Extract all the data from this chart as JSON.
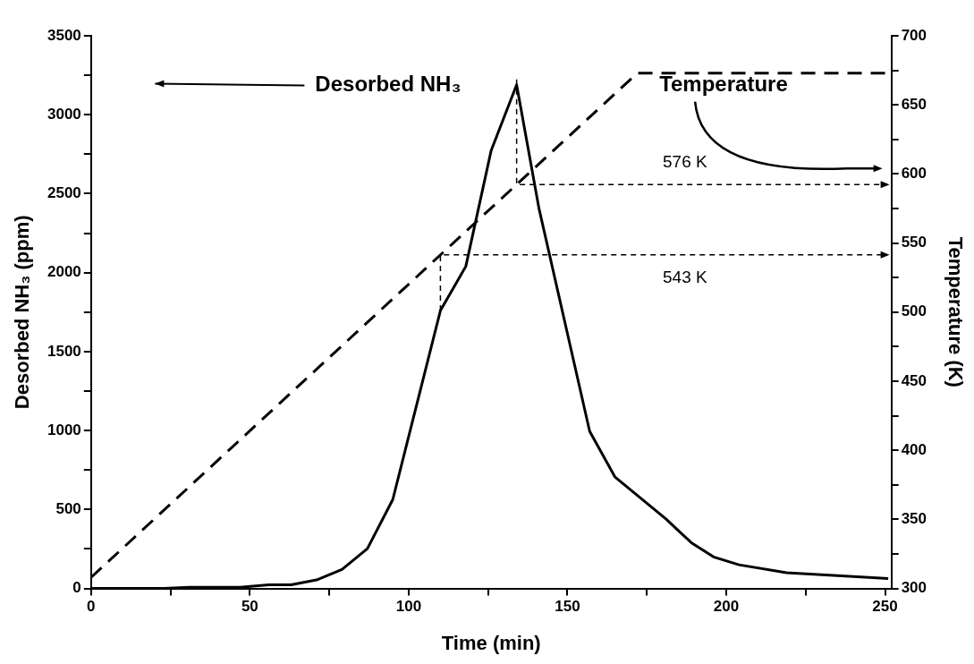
{
  "chart_data": {
    "type": "line",
    "xlabel": "Time (min)",
    "ylabel": "Desorbed NH₃ (ppm)",
    "y2label": "Temperature (K)",
    "xlim": [
      0,
      252
    ],
    "xticks": [
      0,
      {
        "value": 25,
        "label": null
      },
      50,
      {
        "value": 75,
        "label": null
      },
      100,
      {
        "value": 125,
        "label": null
      },
      150,
      {
        "value": 175,
        "label": null
      },
      200,
      {
        "value": 225,
        "label": null
      },
      250
    ],
    "ylim": [
      0,
      3500
    ],
    "yticks": [
      0,
      {
        "value": 250,
        "label": null
      },
      500,
      {
        "value": 750,
        "label": null
      },
      1000,
      {
        "value": 1250,
        "label": null
      },
      1500,
      {
        "value": 1750,
        "label": null
      },
      2000,
      {
        "value": 2250,
        "label": null
      },
      2500,
      {
        "value": 2750,
        "label": null
      },
      3000,
      {
        "value": 3250,
        "label": null
      },
      3500
    ],
    "y2lim": [
      300,
      700
    ],
    "y2ticks": [
      300,
      {
        "value": 325,
        "label": null
      },
      350,
      {
        "value": 375,
        "label": null
      },
      400,
      {
        "value": 425,
        "label": null
      },
      450,
      {
        "value": 475,
        "label": null
      },
      500,
      {
        "value": 525,
        "label": null
      },
      550,
      {
        "value": 575,
        "label": null
      },
      600,
      {
        "value": 625,
        "label": null
      },
      650,
      {
        "value": 675,
        "label": null
      },
      700
    ],
    "grid": false,
    "legend": false,
    "marker": "none",
    "annotations": [
      "576 K",
      "543 K"
    ],
    "series": [
      {
        "name": "Desorbed NH₃",
        "color": "#000000",
        "line_style": "solid",
        "x": [
          0,
          23,
          31,
          47,
          56,
          63,
          71,
          79,
          87,
          95,
          110,
          118,
          126,
          134,
          141,
          157,
          165,
          181,
          189,
          196,
          204,
          219,
          251
        ],
        "values": [
          0,
          0,
          7,
          7,
          23,
          23,
          54,
          120,
          252,
          563,
          1760,
          2040,
          2775,
          3190,
          2410,
          995,
          705,
          440,
          290,
          200,
          150,
          100,
          63
        ]
      },
      {
        "name": "Temperature",
        "color": "#000000",
        "line_style": "dashed",
        "axis": "y2",
        "x": [
          0,
          172,
          252
        ],
        "values": [
          308,
          673,
          673
        ]
      }
    ]
  }
}
